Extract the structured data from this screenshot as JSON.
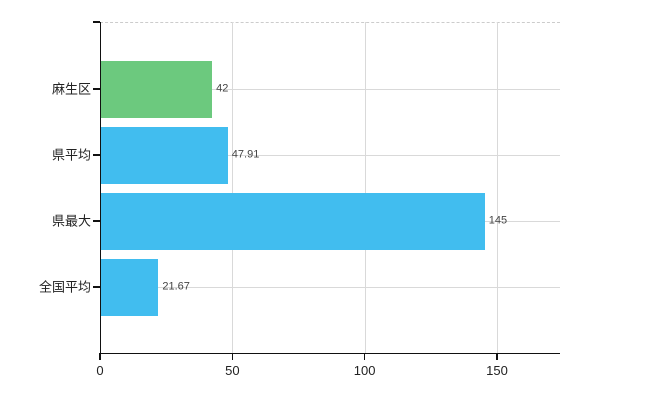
{
  "chart_data": {
    "type": "bar",
    "orientation": "horizontal",
    "title": "",
    "categories": [
      "麻生区",
      "県平均",
      "県最大",
      "全国平均"
    ],
    "values": [
      42,
      47.91,
      145,
      21.67
    ],
    "value_labels": [
      "42",
      "47.91",
      "145",
      "21.67"
    ],
    "bar_colors": [
      "#6cc97e",
      "#41bdef",
      "#41bdef",
      "#41bdef"
    ],
    "x_ticks": [
      0,
      50,
      100,
      150
    ],
    "x_tick_labels": [
      "0",
      "50",
      "100",
      "150"
    ],
    "xlim": [
      0,
      173.8
    ],
    "grid": true,
    "legend": false,
    "colors": {
      "bar_green": "#6cc97e",
      "bar_blue": "#41bdef",
      "grid": "#d9d9d9",
      "axis": "#111111",
      "category_label": "#222222",
      "value_label": "#444444"
    }
  }
}
